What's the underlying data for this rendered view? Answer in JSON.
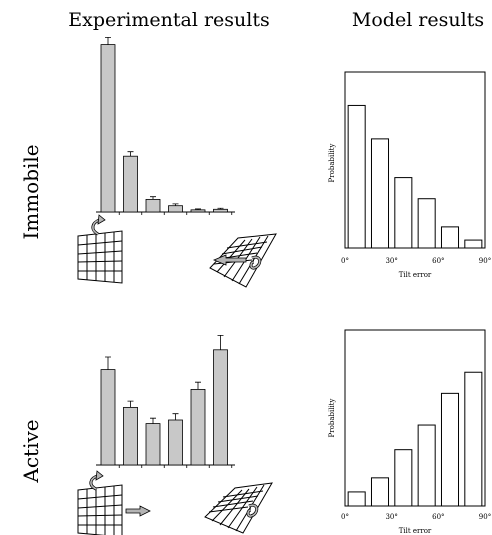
{
  "titles": {
    "left": "Experimental results",
    "right": "Model results"
  },
  "rows": [
    {
      "label": "Immobile"
    },
    {
      "label": "Active"
    }
  ],
  "colors": {
    "exp_bar_fill": "#c8c8c8",
    "model_bar_fill": "#ffffff",
    "stroke": "#000000",
    "arrow_fill": "#b4b4b4"
  },
  "icons": {
    "row1_left": "grid-rotating-icon",
    "row1_right": "tilted-grid-rotating-icon",
    "row2_left": "grid-translating-icon",
    "row2_right": "tilted-grid-rotating-icon"
  },
  "chart_data": [
    {
      "type": "bar",
      "title": "",
      "xlabel": "",
      "ylabel": "",
      "ylim": [
        0,
        1
      ],
      "grid": false,
      "values": [
        0.93,
        0.31,
        0.07,
        0.035,
        0.012,
        0.015
      ],
      "errors": [
        0.04,
        0.025,
        0.015,
        0.01,
        0.005,
        0.006
      ]
    },
    {
      "type": "bar",
      "title": "",
      "xlabel": "Tilt error",
      "ylabel": "Probability",
      "xlim": [
        0,
        90
      ],
      "ylim": [
        0,
        1
      ],
      "grid": false,
      "tick_labels": [
        "0°",
        "30°",
        "60°",
        "90°"
      ],
      "values": [
        0.81,
        0.62,
        0.4,
        0.28,
        0.12,
        0.045
      ]
    },
    {
      "type": "bar",
      "title": "",
      "xlabel": "",
      "ylabel": "",
      "ylim": [
        0,
        1
      ],
      "grid": false,
      "values": [
        0.53,
        0.32,
        0.23,
        0.25,
        0.42,
        0.64
      ],
      "errors": [
        0.07,
        0.035,
        0.03,
        0.035,
        0.04,
        0.08
      ]
    },
    {
      "type": "bar",
      "title": "",
      "xlabel": "Tilt error",
      "ylabel": "Probability",
      "xlim": [
        0,
        90
      ],
      "ylim": [
        0,
        1
      ],
      "grid": false,
      "tick_labels": [
        "0°",
        "30°",
        "60°",
        "90°"
      ],
      "values": [
        0.08,
        0.16,
        0.32,
        0.46,
        0.64,
        0.76
      ]
    }
  ]
}
